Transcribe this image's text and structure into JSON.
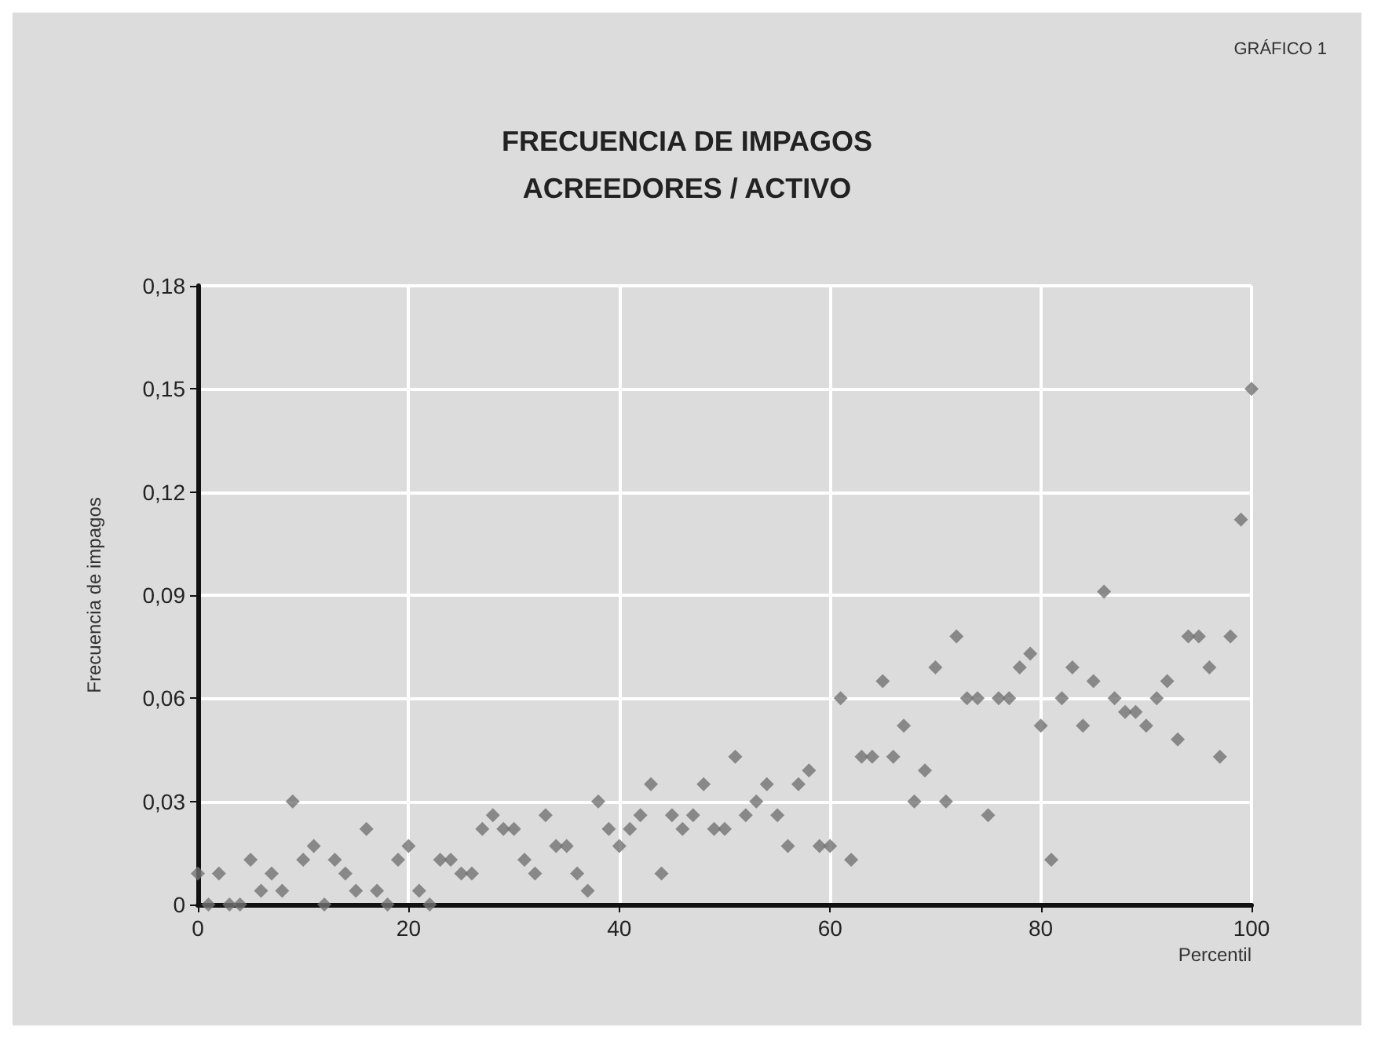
{
  "chart_data": {
    "type": "scatter",
    "title": "FRECUENCIA DE IMPAGOS\nACREEDORES / ACTIVO",
    "annotations": [
      "GRÁFICO 1"
    ],
    "xlabel": "Percentil",
    "ylabel": "Frecuencia de impagos",
    "x": [
      0,
      1,
      2,
      3,
      4,
      5,
      6,
      7,
      8,
      9,
      10,
      11,
      12,
      13,
      14,
      15,
      16,
      17,
      18,
      19,
      20,
      21,
      22,
      23,
      24,
      25,
      26,
      27,
      28,
      29,
      30,
      31,
      32,
      33,
      34,
      35,
      36,
      37,
      38,
      39,
      40,
      41,
      42,
      43,
      44,
      45,
      46,
      47,
      48,
      49,
      50,
      51,
      52,
      53,
      54,
      55,
      56,
      57,
      58,
      59,
      60,
      61,
      62,
      63,
      64,
      65,
      66,
      67,
      68,
      69,
      70,
      71,
      72,
      73,
      74,
      75,
      76,
      77,
      78,
      79,
      80,
      81,
      82,
      83,
      84,
      85,
      86,
      87,
      88,
      89,
      90,
      91,
      92,
      93,
      94,
      95,
      96,
      97,
      98,
      99,
      100
    ],
    "series": [
      {
        "color": "#737373",
        "values": [
          0.009,
          0,
          0.009,
          0,
          0,
          0.013,
          0.004,
          0.009,
          0.004,
          0.03,
          0.013,
          0.017,
          0,
          0.013,
          0.009,
          0.004,
          0.022,
          0.004,
          0,
          0.013,
          0.017,
          0.004,
          0,
          0.013,
          0.013,
          0.009,
          0.009,
          0.022,
          0.026,
          0.022,
          0.022,
          0.013,
          0.009,
          0.026,
          0.017,
          0.017,
          0.009,
          0.004,
          0.03,
          0.022,
          0.017,
          0.022,
          0.026,
          0.035,
          0.009,
          0.026,
          0.022,
          0.026,
          0.035,
          0.022,
          0.022,
          0.043,
          0.026,
          0.03,
          0.035,
          0.026,
          0.017,
          0.035,
          0.039,
          0.017,
          0.017,
          0.06,
          0.013,
          0.043,
          0.043,
          0.065,
          0.043,
          0.052,
          0.03,
          0.039,
          0.069,
          0.03,
          0.078,
          0.06,
          0.06,
          0.026,
          0.06,
          0.06,
          0.069,
          0.073,
          0.052,
          0.013,
          0.06,
          0.069,
          0.052,
          0.065,
          0.091,
          0.06,
          0.056,
          0.056,
          0.052,
          0.06,
          0.065,
          0.048,
          0.078,
          0.078,
          0.069,
          0.043,
          0.078,
          0.112,
          0.15
        ]
      }
    ],
    "xlim": [
      0,
      100
    ],
    "xticks": [
      0,
      20,
      40,
      60,
      80,
      100
    ],
    "ylim": [
      0,
      0.18
    ],
    "yticks": [
      0,
      {
        "value": 0.03,
        "label": "0,03"
      },
      {
        "value": 0.06,
        "label": "0,06"
      },
      {
        "value": 0.09,
        "label": "0,09"
      },
      {
        "value": 0.12,
        "label": "0,12"
      },
      {
        "value": 0.15,
        "label": "0,15"
      },
      {
        "value": 0.18,
        "label": "0,18"
      }
    ],
    "grid": true,
    "marker": "diamond"
  }
}
